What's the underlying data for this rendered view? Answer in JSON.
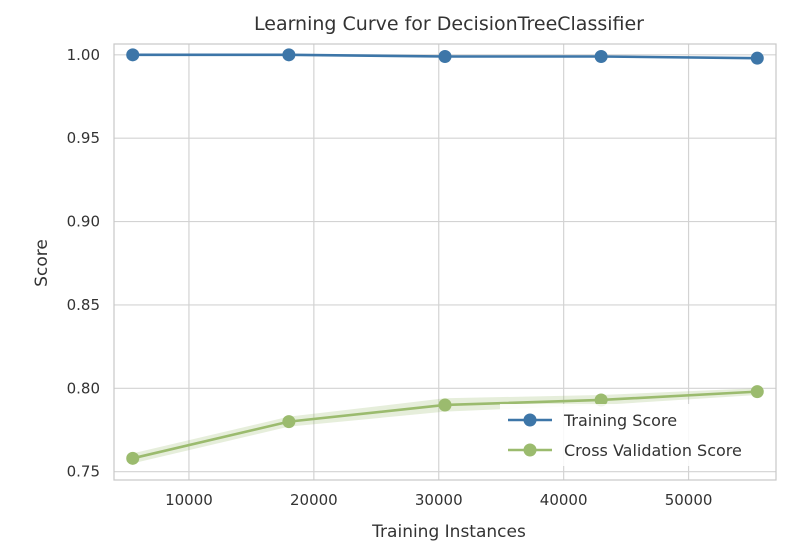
{
  "chart_data": {
    "type": "line",
    "title": "Learning Curve for DecisionTreeClassifier",
    "xlabel": "Training Instances",
    "ylabel": "Score",
    "xlim": [
      4000,
      57000
    ],
    "ylim": [
      0.745,
      1.0065
    ],
    "x_ticks": [
      10000,
      20000,
      30000,
      40000,
      50000
    ],
    "x_tick_labels": [
      "10000",
      "20000",
      "30000",
      "40000",
      "50000"
    ],
    "y_ticks": [
      0.75,
      0.8,
      0.85,
      0.9,
      0.95,
      1.0
    ],
    "y_tick_labels": [
      "0.75",
      "0.80",
      "0.85",
      "0.90",
      "0.95",
      "1.00"
    ],
    "grid": true,
    "legend_position": "lower-right",
    "x": [
      5500,
      18000,
      30500,
      43000,
      55500
    ],
    "series": [
      {
        "name": "Training Score",
        "color": "#3d76a8",
        "values": [
          1.0,
          1.0,
          0.999,
          0.999,
          0.998
        ],
        "band_lower": [
          1.0,
          1.0,
          0.999,
          0.999,
          0.998
        ],
        "band_upper": [
          1.0,
          1.0,
          0.999,
          0.999,
          0.998
        ]
      },
      {
        "name": "Cross Validation Score",
        "color": "#9bbb6e",
        "values": [
          0.758,
          0.78,
          0.79,
          0.793,
          0.798
        ],
        "band_lower": [
          0.755,
          0.777,
          0.786,
          0.79,
          0.796
        ],
        "band_upper": [
          0.761,
          0.783,
          0.794,
          0.796,
          0.8
        ]
      }
    ]
  }
}
